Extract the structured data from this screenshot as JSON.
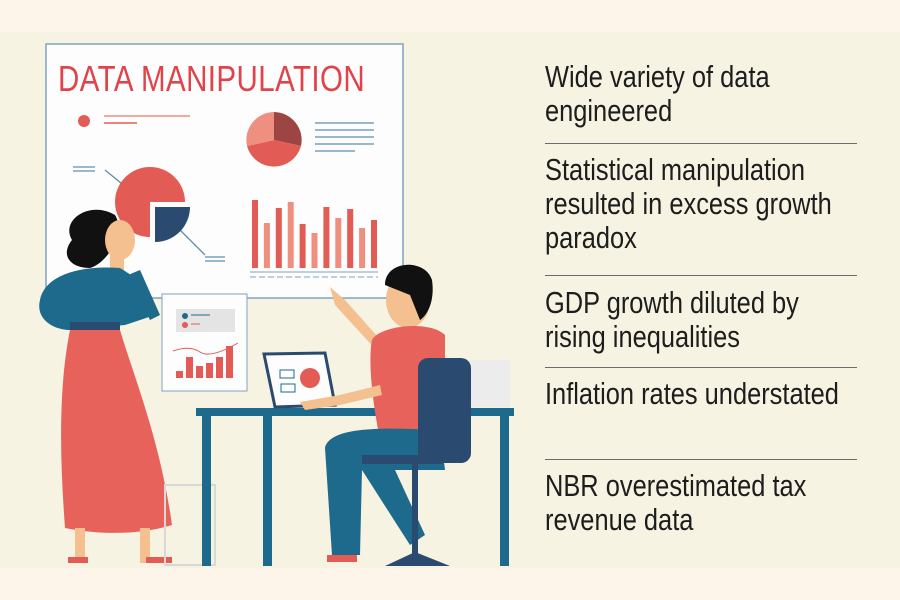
{
  "infographic": {
    "board_title": "DATA MANIPULATION",
    "points": [
      "Wide variety of data engineered",
      "Statistical manipulation resulted in excess growth paradox",
      "GDP growth diluted by rising inequalities",
      "Inflation rates understated",
      "NBR overestimated tax revenue data"
    ]
  },
  "colors": {
    "accent_red": "#e0434a",
    "bar_red": "#e35b55",
    "bar_salmon": "#ef8f7f",
    "navy": "#2b4a6f",
    "teal": "#1d6a8c",
    "background": "#f7f3e3"
  }
}
